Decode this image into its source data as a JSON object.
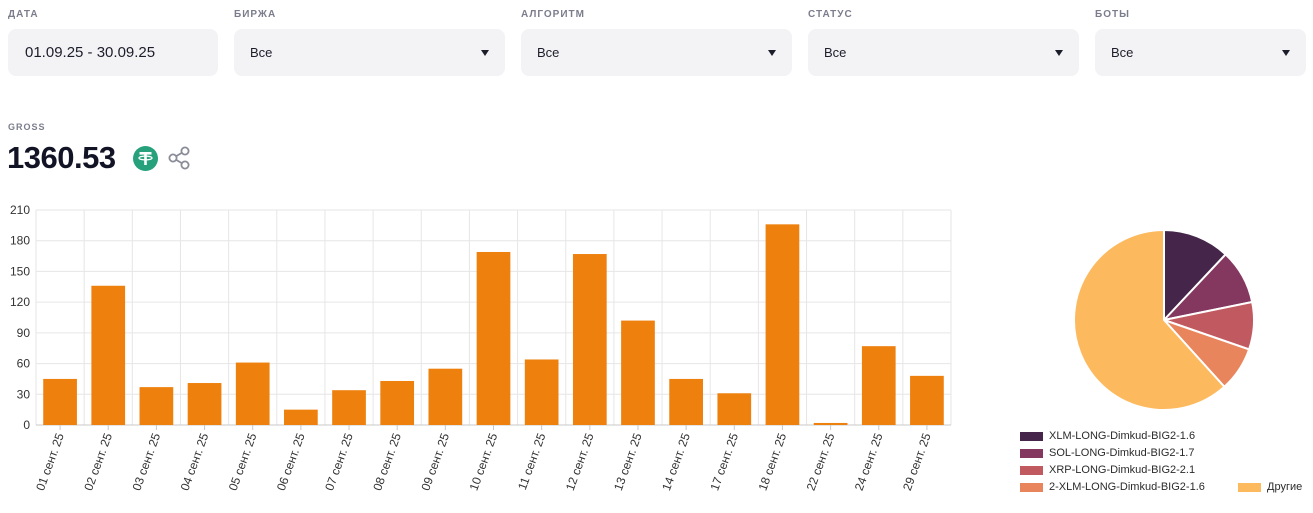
{
  "filters": [
    {
      "label": "ДАТА",
      "value": "01.09.25 - 30.09.25",
      "type": "date"
    },
    {
      "label": "БИРЖА",
      "value": "Все",
      "type": "select"
    },
    {
      "label": "АЛГОРИТМ",
      "value": "Все",
      "type": "select"
    },
    {
      "label": "СТАТУС",
      "value": "Все",
      "type": "select"
    },
    {
      "label": "БОТЫ",
      "value": "Все",
      "type": "select"
    }
  ],
  "gross": {
    "label": "GROSS",
    "value": "1360.53",
    "currency_icon": "tether-icon",
    "share_icon": "share-icon"
  },
  "chart_data": [
    {
      "type": "bar",
      "categories": [
        "01 сент. 25",
        "02 сент. 25",
        "03 сент. 25",
        "04 сент. 25",
        "05 сент. 25",
        "06 сент. 25",
        "07 сент. 25",
        "08 сент. 25",
        "09 сент. 25",
        "10 сент. 25",
        "11 сент. 25",
        "12 сент. 25",
        "13 сент. 25",
        "14 сент. 25",
        "17 сент. 25",
        "18 сент. 25",
        "22 сент. 25",
        "24 сент. 25",
        "29 сент. 25"
      ],
      "values": [
        45,
        136,
        37,
        41,
        61,
        15,
        34,
        43,
        55,
        169,
        64,
        167,
        102,
        45,
        31,
        196,
        2,
        77,
        48
      ],
      "ylim": [
        0,
        210
      ],
      "yticks": [
        0,
        30,
        60,
        90,
        120,
        150,
        180,
        210
      ],
      "grid": true,
      "color": "#ee810e"
    },
    {
      "type": "pie",
      "labels": [
        "XLM-LONG-Dimkud-BIG2-1.6",
        "SOL-LONG-Dimkud-BIG2-1.7",
        "XRP-LONG-Dimkud-BIG2-2.1",
        "2-XLM-LONG-Dimkud-BIG2-1.6",
        "Другие"
      ],
      "values": [
        12.0,
        9.8,
        8.5,
        8.0,
        61.7
      ],
      "colors": [
        "#45264a",
        "#84375f",
        "#c15a60",
        "#e8855c",
        "#fdb95d"
      ],
      "legend": "bottom"
    }
  ]
}
